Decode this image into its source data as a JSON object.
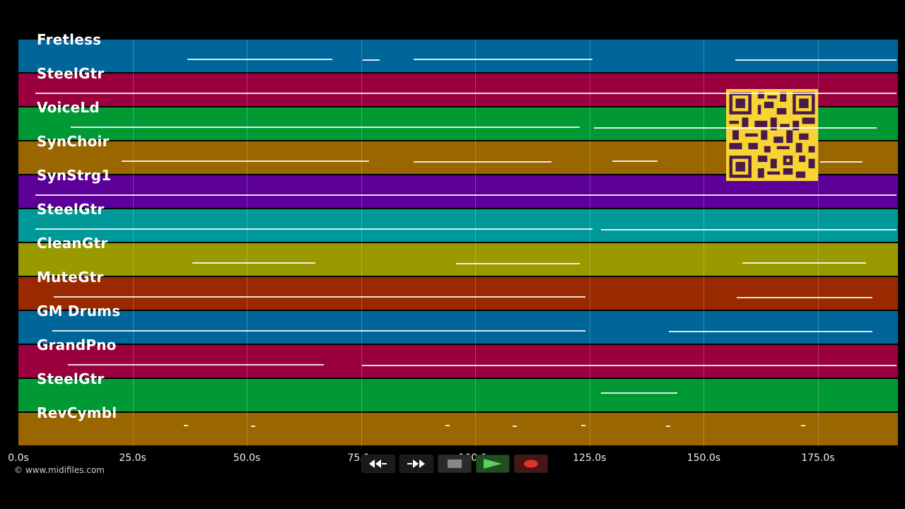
{
  "tracks": [
    {
      "name": "Fretless",
      "color": "#006699"
    },
    {
      "name": "SteelGtr",
      "color": "#99003d"
    },
    {
      "name": "VoiceLd",
      "color": "#009933"
    },
    {
      "name": "SynChoir",
      "color": "#996600"
    },
    {
      "name": "SynStrg1",
      "color": "#5c0099"
    },
    {
      "name": "SteelGtr",
      "color": "#009999"
    },
    {
      "name": "CleanGtr",
      "color": "#999900"
    },
    {
      "name": "MuteGtr",
      "color": "#992900"
    },
    {
      "name": "GM Drums",
      "color": "#006699"
    },
    {
      "name": "GrandPno",
      "color": "#99003d"
    },
    {
      "name": "SteelGtr",
      "color": "#009933"
    },
    {
      "name": "RevCymbl",
      "color": "#996600"
    }
  ],
  "timeline": {
    "max_seconds": 192.5,
    "ticks": [
      "0.0s",
      "25.0s",
      "50.0s",
      "75.0s",
      "100.0s",
      "125.0s",
      "150.0s",
      "175.0s"
    ],
    "tick_values": [
      0,
      25,
      50,
      75,
      100,
      125,
      150,
      175
    ]
  },
  "transport": {
    "rewind": "rewind-icon",
    "fast_forward": "fast-forward-icon",
    "stop": "stop-icon",
    "play": "play-icon",
    "record": "record-icon"
  },
  "copyright": "© www.midifiles.com"
}
